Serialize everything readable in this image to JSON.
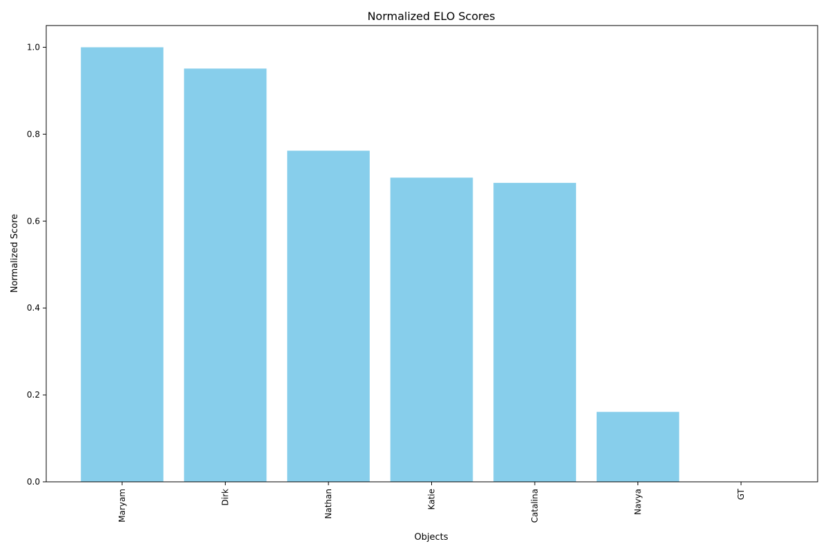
{
  "chart_data": {
    "type": "bar",
    "title": "Normalized ELO Scores",
    "xlabel": "Objects",
    "ylabel": "Normalized Score",
    "categories": [
      "Maryam",
      "Dirk",
      "Nathan",
      "Katie",
      "Catalina",
      "Navya",
      "GT"
    ],
    "values": [
      1.0,
      0.951,
      0.762,
      0.7,
      0.688,
      0.161,
      0.0
    ],
    "ylim": [
      0,
      1.05
    ],
    "yticks": [
      "0.0",
      "0.2",
      "0.4",
      "0.6",
      "0.8",
      "1.0"
    ],
    "ytick_values": [
      0.0,
      0.2,
      0.4,
      0.6,
      0.8,
      1.0
    ],
    "bar_color": "#87CEEB",
    "grid": false,
    "legend": "none"
  }
}
